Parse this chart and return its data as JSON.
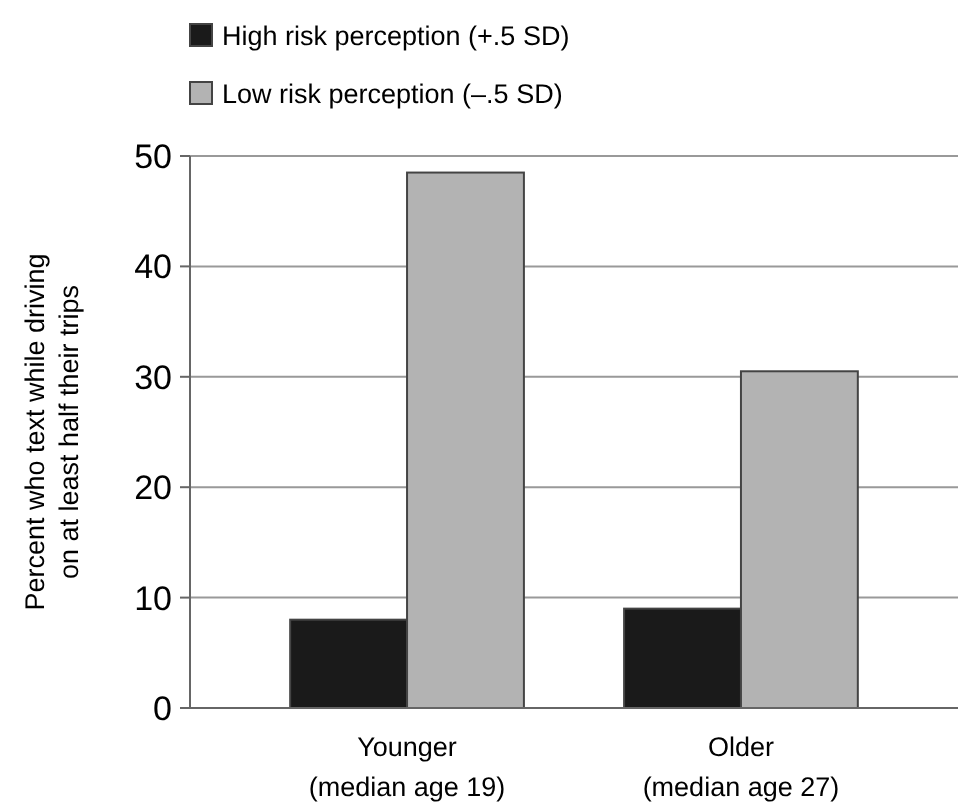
{
  "chart_data": {
    "type": "bar",
    "ylabel": "Percent who text while driving\non at least half their trips",
    "categories": [
      "Younger\n(median age 19)",
      "Older\n(median age 27)"
    ],
    "series": [
      {
        "name": "High risk perception (+.5 SD)",
        "color": "#1a1a1a",
        "values": [
          8,
          9
        ]
      },
      {
        "name": "Low risk perception (–.5 SD)",
        "color": "#b3b3b3",
        "values": [
          48.5,
          30.5
        ]
      }
    ],
    "ylim": [
      0,
      50
    ],
    "yticks": [
      0,
      10,
      20,
      30,
      40,
      50
    ],
    "grid": "y",
    "legend": "top left"
  }
}
